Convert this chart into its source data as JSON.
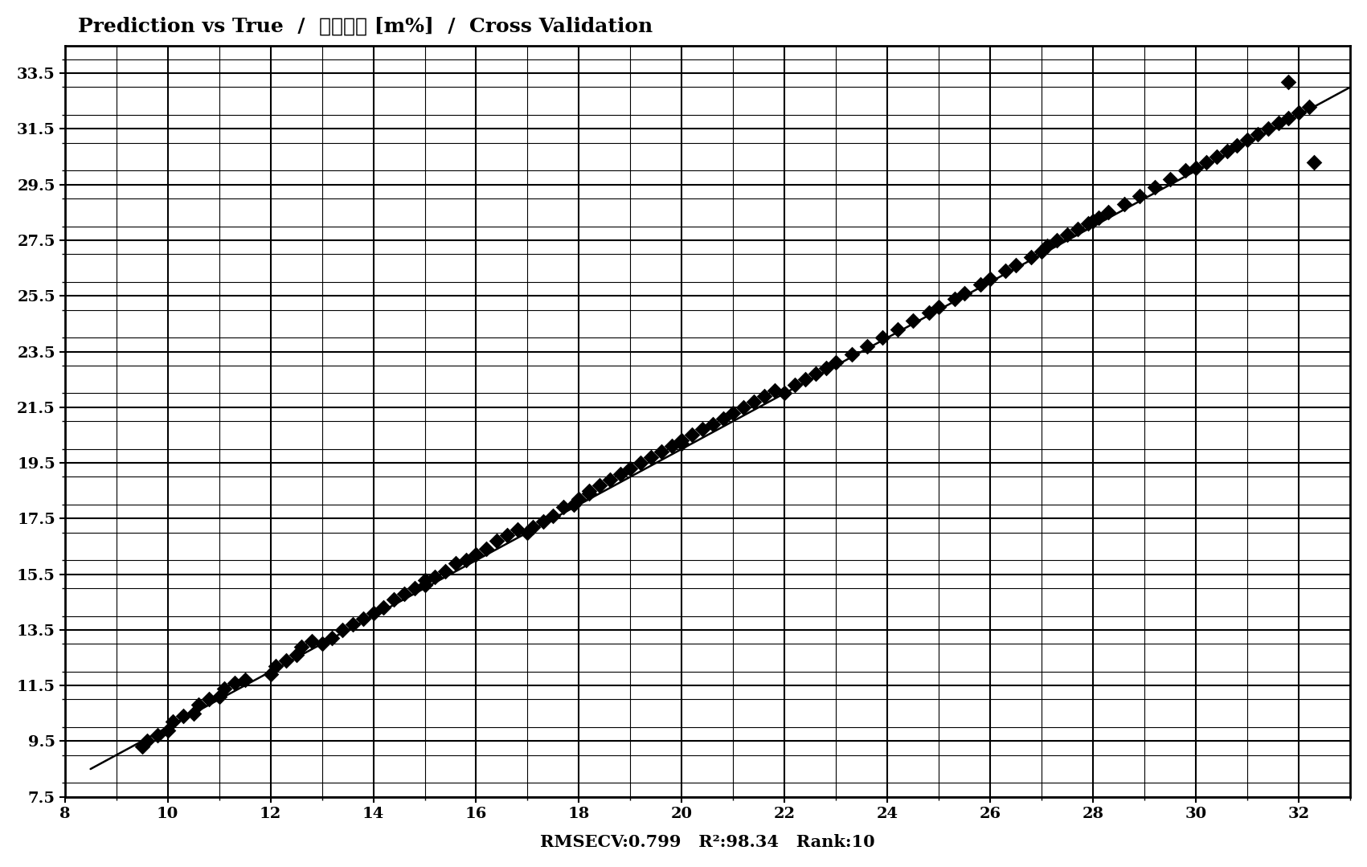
{
  "title": "Prediction vs True  /  正槟烷盗 [m%]  /  Cross Validation",
  "xlabel": "RMSECV:0.799   R²:98.34   Rank:10",
  "xlim": [
    8,
    33
  ],
  "ylim": [
    7.5,
    34.5
  ],
  "xticks": [
    8,
    10,
    12,
    14,
    16,
    18,
    20,
    22,
    24,
    26,
    28,
    30,
    32
  ],
  "yticks": [
    7.5,
    9.5,
    11.5,
    13.5,
    15.5,
    17.5,
    19.5,
    21.5,
    23.5,
    25.5,
    27.5,
    29.5,
    31.5,
    33.5
  ],
  "ytick_labels": [
    "7.5",
    "9.5",
    "11.5",
    "13.5",
    "15.5",
    "17.5",
    "19.5",
    "21.5",
    "23.5",
    "25.5",
    "27.5",
    "29.5",
    "31.5",
    "33.5"
  ],
  "background_color": "#ffffff",
  "scatter_color": "#000000",
  "line_color": "#000000",
  "line_x": [
    8.5,
    33.0
  ],
  "line_y": [
    8.5,
    33.0
  ],
  "grid_color": "#000000",
  "title_fontsize": 18,
  "label_fontsize": 15,
  "tick_fontsize": 14,
  "scatter_x": [
    9.5,
    9.6,
    9.8,
    10.0,
    10.1,
    10.3,
    10.5,
    10.6,
    10.8,
    11.0,
    11.1,
    11.3,
    11.5,
    12.0,
    12.1,
    12.3,
    12.5,
    12.6,
    12.8,
    13.0,
    13.2,
    13.4,
    13.6,
    13.8,
    14.0,
    14.2,
    14.4,
    14.6,
    14.8,
    15.0,
    15.0,
    15.2,
    15.4,
    15.6,
    15.8,
    16.0,
    16.2,
    16.4,
    16.6,
    16.8,
    17.0,
    17.1,
    17.3,
    17.5,
    17.7,
    17.9,
    18.0,
    18.2,
    18.2,
    18.4,
    18.6,
    18.8,
    19.0,
    19.2,
    19.4,
    19.6,
    19.8,
    20.0,
    20.0,
    20.2,
    20.4,
    20.6,
    20.8,
    21.0,
    21.2,
    21.4,
    21.6,
    21.8,
    22.0,
    22.2,
    22.4,
    22.6,
    22.8,
    23.0,
    23.3,
    23.6,
    23.9,
    24.2,
    24.5,
    24.8,
    25.0,
    25.3,
    25.5,
    25.8,
    26.0,
    26.3,
    26.5,
    26.8,
    27.0,
    27.1,
    27.3,
    27.5,
    27.7,
    27.9,
    28.1,
    28.0,
    28.3,
    28.6,
    28.9,
    29.2,
    29.5,
    29.8,
    30.0,
    30.2,
    30.4,
    30.6,
    30.8,
    31.0,
    31.2,
    31.4,
    31.6,
    31.8,
    32.0,
    32.2,
    31.8,
    32.3
  ],
  "scatter_y": [
    9.3,
    9.5,
    9.7,
    9.9,
    10.2,
    10.4,
    10.5,
    10.8,
    11.0,
    11.1,
    11.4,
    11.6,
    11.7,
    11.9,
    12.2,
    12.4,
    12.6,
    12.9,
    13.1,
    13.0,
    13.2,
    13.5,
    13.7,
    13.9,
    14.1,
    14.3,
    14.6,
    14.8,
    15.0,
    15.1,
    15.3,
    15.4,
    15.6,
    15.9,
    16.0,
    16.2,
    16.4,
    16.7,
    16.9,
    17.1,
    17.0,
    17.2,
    17.4,
    17.6,
    17.9,
    18.0,
    18.2,
    18.4,
    18.5,
    18.7,
    18.9,
    19.1,
    19.3,
    19.5,
    19.7,
    19.9,
    20.1,
    20.3,
    20.2,
    20.5,
    20.7,
    20.9,
    21.1,
    21.3,
    21.5,
    21.7,
    21.9,
    22.1,
    22.0,
    22.3,
    22.5,
    22.7,
    22.9,
    23.1,
    23.4,
    23.7,
    24.0,
    24.3,
    24.6,
    24.9,
    25.1,
    25.4,
    25.6,
    25.9,
    26.1,
    26.4,
    26.6,
    26.9,
    27.1,
    27.3,
    27.5,
    27.7,
    27.9,
    28.1,
    28.3,
    28.2,
    28.5,
    28.8,
    29.1,
    29.4,
    29.7,
    30.0,
    30.1,
    30.3,
    30.5,
    30.7,
    30.9,
    31.1,
    31.3,
    31.5,
    31.7,
    31.9,
    32.1,
    32.3,
    33.2,
    30.3
  ]
}
